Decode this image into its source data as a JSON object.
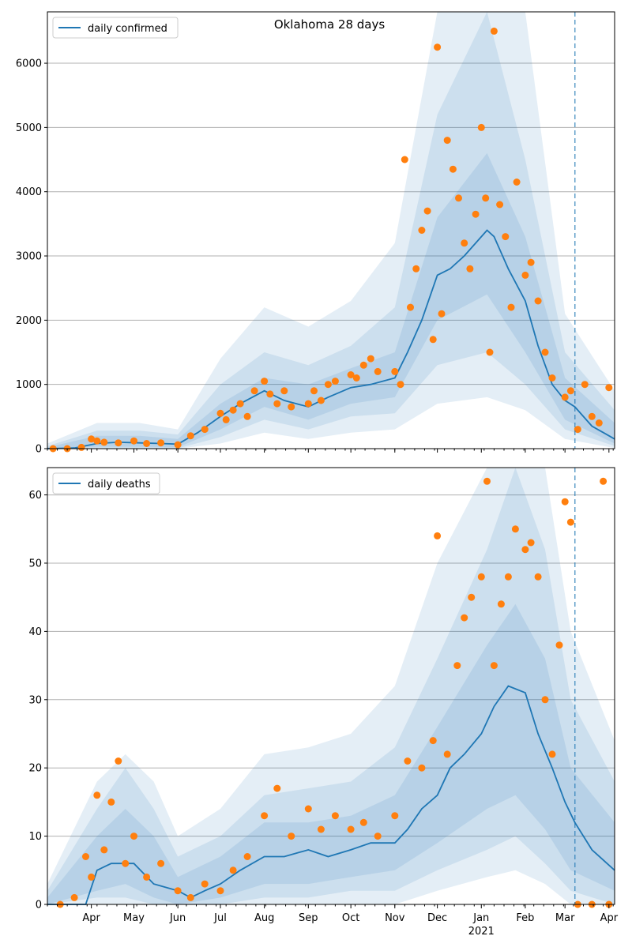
{
  "colors": {
    "line": "#1f77b4",
    "points": "#ff7f0e",
    "band": "#1f77b4",
    "grid": "#b0b0b0",
    "marker_line": "#1f77b4"
  },
  "chart_data": [
    {
      "type": "line",
      "title": "Oklahoma 28 days",
      "legend": "daily confirmed",
      "legend_position": "top-left",
      "grid": "horizontal",
      "ylim": [
        0,
        6800
      ],
      "yticks": [
        0,
        1000,
        2000,
        3000,
        4000,
        5000,
        6000
      ],
      "xlim": [
        "2020-03-01",
        "2021-04-05"
      ],
      "x_tick_labels": [
        "Apr",
        "May",
        "Jun",
        "Jul",
        "Aug",
        "Sep",
        "Oct",
        "Nov",
        "Dec",
        "Jan",
        "Feb",
        "Mar",
        "Apr"
      ],
      "x_tick_dates": [
        "2020-04-01",
        "2020-05-01",
        "2020-06-01",
        "2020-07-01",
        "2020-08-01",
        "2020-09-01",
        "2020-10-01",
        "2020-11-01",
        "2020-12-01",
        "2021-01-01",
        "2021-02-01",
        "2021-03-01",
        "2021-04-01"
      ],
      "forecast_start": "2021-03-08",
      "series": [
        {
          "name": "daily confirmed",
          "x": [
            "2020-03-01",
            "2020-03-20",
            "2020-04-05",
            "2020-04-20",
            "2020-05-05",
            "2020-05-20",
            "2020-06-01",
            "2020-06-15",
            "2020-07-01",
            "2020-07-15",
            "2020-08-01",
            "2020-08-15",
            "2020-09-01",
            "2020-09-15",
            "2020-10-01",
            "2020-10-15",
            "2020-11-01",
            "2020-11-10",
            "2020-11-20",
            "2020-12-01",
            "2020-12-10",
            "2020-12-20",
            "2021-01-01",
            "2021-01-05",
            "2021-01-10",
            "2021-01-20",
            "2021-02-01",
            "2021-02-10",
            "2021-02-20",
            "2021-03-01",
            "2021-03-08",
            "2021-03-20",
            "2021-04-05"
          ],
          "values": [
            0,
            10,
            80,
            100,
            90,
            80,
            70,
            250,
            500,
            700,
            900,
            750,
            650,
            800,
            950,
            1000,
            1100,
            1500,
            2000,
            2700,
            2800,
            3000,
            3300,
            3400,
            3300,
            2800,
            2300,
            1600,
            1000,
            750,
            650,
            350,
            150
          ]
        },
        {
          "name": "median band inner",
          "x": [
            "2020-03-01",
            "2020-04-05",
            "2020-05-05",
            "2020-06-01",
            "2020-07-01",
            "2020-08-01",
            "2020-09-01",
            "2020-10-01",
            "2020-11-01",
            "2020-12-01",
            "2021-01-05",
            "2021-02-01",
            "2021-03-01",
            "2021-04-05"
          ],
          "upper": [
            20,
            200,
            200,
            150,
            700,
            1100,
            1000,
            1250,
            1500,
            3600,
            4600,
            3300,
            1100,
            400
          ],
          "lower": [
            0,
            30,
            30,
            20,
            300,
            650,
            450,
            700,
            800,
            2000,
            2400,
            1500,
            450,
            80
          ]
        },
        {
          "name": "band middle",
          "x": [
            "2020-03-01",
            "2020-04-05",
            "2020-05-05",
            "2020-06-01",
            "2020-07-01",
            "2020-08-01",
            "2020-09-01",
            "2020-10-01",
            "2020-11-01",
            "2020-12-01",
            "2021-01-05",
            "2021-02-01",
            "2021-03-01",
            "2021-04-05"
          ],
          "upper": [
            40,
            280,
            280,
            220,
            1000,
            1500,
            1300,
            1600,
            2200,
            5200,
            6800,
            4500,
            1500,
            600
          ],
          "lower": [
            0,
            10,
            10,
            5,
            180,
            450,
            300,
            500,
            550,
            1300,
            1500,
            1000,
            300,
            40
          ]
        },
        {
          "name": "band outer",
          "x": [
            "2020-03-01",
            "2020-04-05",
            "2020-05-05",
            "2020-06-01",
            "2020-07-01",
            "2020-08-01",
            "2020-09-01",
            "2020-10-01",
            "2020-11-01",
            "2020-12-01",
            "2021-01-05",
            "2021-02-01",
            "2021-03-01",
            "2021-04-05"
          ],
          "upper": [
            80,
            400,
            400,
            300,
            1400,
            2200,
            1900,
            2300,
            3200,
            6800,
            6800,
            6800,
            2100,
            900
          ],
          "lower": [
            0,
            0,
            0,
            0,
            80,
            250,
            150,
            250,
            300,
            700,
            800,
            600,
            150,
            10
          ]
        }
      ],
      "points": {
        "x": [
          "2020-03-05",
          "2020-03-15",
          "2020-03-25",
          "2020-04-01",
          "2020-04-05",
          "2020-04-10",
          "2020-04-20",
          "2020-05-01",
          "2020-05-10",
          "2020-05-20",
          "2020-06-01",
          "2020-06-10",
          "2020-06-20",
          "2020-07-01",
          "2020-07-05",
          "2020-07-10",
          "2020-07-15",
          "2020-07-20",
          "2020-07-25",
          "2020-08-01",
          "2020-08-05",
          "2020-08-10",
          "2020-08-15",
          "2020-08-20",
          "2020-09-01",
          "2020-09-05",
          "2020-09-10",
          "2020-09-15",
          "2020-09-20",
          "2020-10-01",
          "2020-10-05",
          "2020-10-10",
          "2020-10-15",
          "2020-10-20",
          "2020-11-01",
          "2020-11-05",
          "2020-11-08",
          "2020-11-12",
          "2020-11-16",
          "2020-11-20",
          "2020-11-24",
          "2020-11-28",
          "2020-12-01",
          "2020-12-04",
          "2020-12-08",
          "2020-12-12",
          "2020-12-16",
          "2020-12-20",
          "2020-12-24",
          "2020-12-28",
          "2021-01-01",
          "2021-01-04",
          "2021-01-07",
          "2021-01-10",
          "2021-01-14",
          "2021-01-18",
          "2021-01-22",
          "2021-01-26",
          "2021-02-01",
          "2021-02-05",
          "2021-02-10",
          "2021-02-15",
          "2021-02-20",
          "2021-03-01",
          "2021-03-05",
          "2021-03-10",
          "2021-03-15",
          "2021-03-20",
          "2021-03-25",
          "2021-04-01"
        ],
        "values": [
          0,
          0,
          20,
          150,
          120,
          100,
          90,
          120,
          80,
          90,
          60,
          200,
          300,
          550,
          450,
          600,
          700,
          500,
          900,
          1050,
          850,
          700,
          900,
          650,
          700,
          900,
          750,
          1000,
          1050,
          1150,
          1100,
          1300,
          1400,
          1200,
          1200,
          1000,
          4500,
          2200,
          2800,
          3400,
          3700,
          1700,
          6250,
          2100,
          4800,
          4350,
          3900,
          3200,
          2800,
          3650,
          5000,
          3900,
          1500,
          6500,
          3800,
          3300,
          2200,
          4150,
          2700,
          2900,
          2300,
          1500,
          1100,
          800,
          900,
          300,
          1000,
          500,
          400,
          950
        ]
      }
    },
    {
      "type": "line",
      "title": "",
      "legend": "daily deaths",
      "legend_position": "top-left",
      "grid": "horizontal",
      "ylim": [
        0,
        64
      ],
      "yticks": [
        0,
        10,
        20,
        30,
        40,
        50,
        60
      ],
      "xlim": [
        "2020-03-01",
        "2021-04-05"
      ],
      "x_tick_labels": [
        "Apr",
        "May",
        "Jun",
        "Jul",
        "Aug",
        "Sep",
        "Oct",
        "Nov",
        "Dec",
        "Jan",
        "Feb",
        "Mar",
        "Apr"
      ],
      "x_year_label": "2021",
      "forecast_start": "2021-03-08",
      "series": [
        {
          "name": "daily deaths",
          "x": [
            "2020-03-01",
            "2020-03-28",
            "2020-04-05",
            "2020-04-15",
            "2020-05-01",
            "2020-05-15",
            "2020-06-01",
            "2020-06-10",
            "2020-06-20",
            "2020-07-01",
            "2020-07-15",
            "2020-08-01",
            "2020-08-15",
            "2020-09-01",
            "2020-09-15",
            "2020-10-01",
            "2020-10-15",
            "2020-11-01",
            "2020-11-10",
            "2020-11-20",
            "2020-12-01",
            "2020-12-10",
            "2020-12-20",
            "2021-01-01",
            "2021-01-10",
            "2021-01-20",
            "2021-02-01",
            "2021-02-10",
            "2021-02-20",
            "2021-03-01",
            "2021-03-08",
            "2021-03-20",
            "2021-04-05"
          ],
          "values": [
            0,
            0,
            5,
            6,
            6,
            3,
            2,
            1,
            2,
            3,
            5,
            7,
            7,
            8,
            7,
            8,
            9,
            9,
            11,
            14,
            16,
            20,
            22,
            25,
            29,
            32,
            31,
            25,
            20,
            15,
            12,
            8,
            5
          ]
        },
        {
          "name": "band inner",
          "x": [
            "2020-03-01",
            "2020-04-05",
            "2020-04-25",
            "2020-05-15",
            "2020-06-01",
            "2020-07-01",
            "2020-08-01",
            "2020-09-01",
            "2020-10-01",
            "2020-11-01",
            "2020-12-01",
            "2021-01-05",
            "2021-01-25",
            "2021-02-15",
            "2021-03-05",
            "2021-04-05"
          ],
          "upper": [
            1,
            10,
            14,
            10,
            4,
            7,
            12,
            12,
            13,
            16,
            26,
            38,
            44,
            36,
            20,
            12
          ],
          "lower": [
            0,
            2,
            3,
            1,
            0,
            1,
            3,
            3,
            4,
            5,
            9,
            14,
            16,
            11,
            5,
            2
          ]
        },
        {
          "name": "band middle",
          "x": [
            "2020-03-01",
            "2020-04-05",
            "2020-04-25",
            "2020-05-15",
            "2020-06-01",
            "2020-07-01",
            "2020-08-01",
            "2020-09-01",
            "2020-10-01",
            "2020-11-01",
            "2020-12-01",
            "2021-01-05",
            "2021-01-25",
            "2021-02-15",
            "2021-03-05",
            "2021-04-05"
          ],
          "upper": [
            2,
            14,
            20,
            14,
            7,
            10,
            16,
            17,
            18,
            23,
            36,
            52,
            64,
            52,
            30,
            18
          ],
          "lower": [
            0,
            1,
            1,
            0,
            0,
            0,
            1,
            1,
            2,
            2,
            5,
            8,
            10,
            6,
            2,
            0
          ]
        },
        {
          "name": "band outer",
          "x": [
            "2020-03-01",
            "2020-04-05",
            "2020-04-25",
            "2020-05-15",
            "2020-06-01",
            "2020-07-01",
            "2020-08-01",
            "2020-09-01",
            "2020-10-01",
            "2020-11-01",
            "2020-12-01",
            "2021-01-05",
            "2021-01-25",
            "2021-02-15",
            "2021-03-05",
            "2021-04-05"
          ],
          "upper": [
            3,
            18,
            22,
            18,
            10,
            14,
            22,
            23,
            25,
            32,
            50,
            64,
            64,
            64,
            40,
            24
          ],
          "lower": [
            0,
            0,
            0,
            0,
            0,
            0,
            0,
            0,
            0,
            0,
            2,
            4,
            5,
            3,
            0,
            0
          ]
        }
      ],
      "points": {
        "x": [
          "2020-03-10",
          "2020-03-20",
          "2020-03-28",
          "2020-04-01",
          "2020-04-05",
          "2020-04-10",
          "2020-04-15",
          "2020-04-20",
          "2020-04-25",
          "2020-05-01",
          "2020-05-10",
          "2020-05-20",
          "2020-06-01",
          "2020-06-10",
          "2020-06-20",
          "2020-07-01",
          "2020-07-10",
          "2020-07-20",
          "2020-08-01",
          "2020-08-10",
          "2020-08-20",
          "2020-09-01",
          "2020-09-10",
          "2020-09-20",
          "2020-10-01",
          "2020-10-10",
          "2020-10-20",
          "2020-11-01",
          "2020-11-10",
          "2020-11-20",
          "2020-11-28",
          "2020-12-01",
          "2020-12-08",
          "2020-12-15",
          "2020-12-20",
          "2020-12-25",
          "2021-01-01",
          "2021-01-05",
          "2021-01-10",
          "2021-01-15",
          "2021-01-20",
          "2021-01-25",
          "2021-02-01",
          "2021-02-05",
          "2021-02-10",
          "2021-02-15",
          "2021-02-20",
          "2021-02-25",
          "2021-03-01",
          "2021-03-05",
          "2021-03-10",
          "2021-03-20",
          "2021-03-28",
          "2021-04-01"
        ],
        "values": [
          0,
          1,
          7,
          4,
          16,
          8,
          15,
          21,
          6,
          10,
          4,
          6,
          2,
          1,
          3,
          2,
          5,
          7,
          13,
          17,
          10,
          14,
          11,
          13,
          11,
          12,
          10,
          13,
          21,
          20,
          24,
          54,
          22,
          35,
          42,
          45,
          48,
          62,
          35,
          44,
          48,
          55,
          52,
          53,
          48,
          30,
          22,
          38,
          59,
          56,
          0,
          0,
          62,
          0
        ]
      }
    }
  ]
}
